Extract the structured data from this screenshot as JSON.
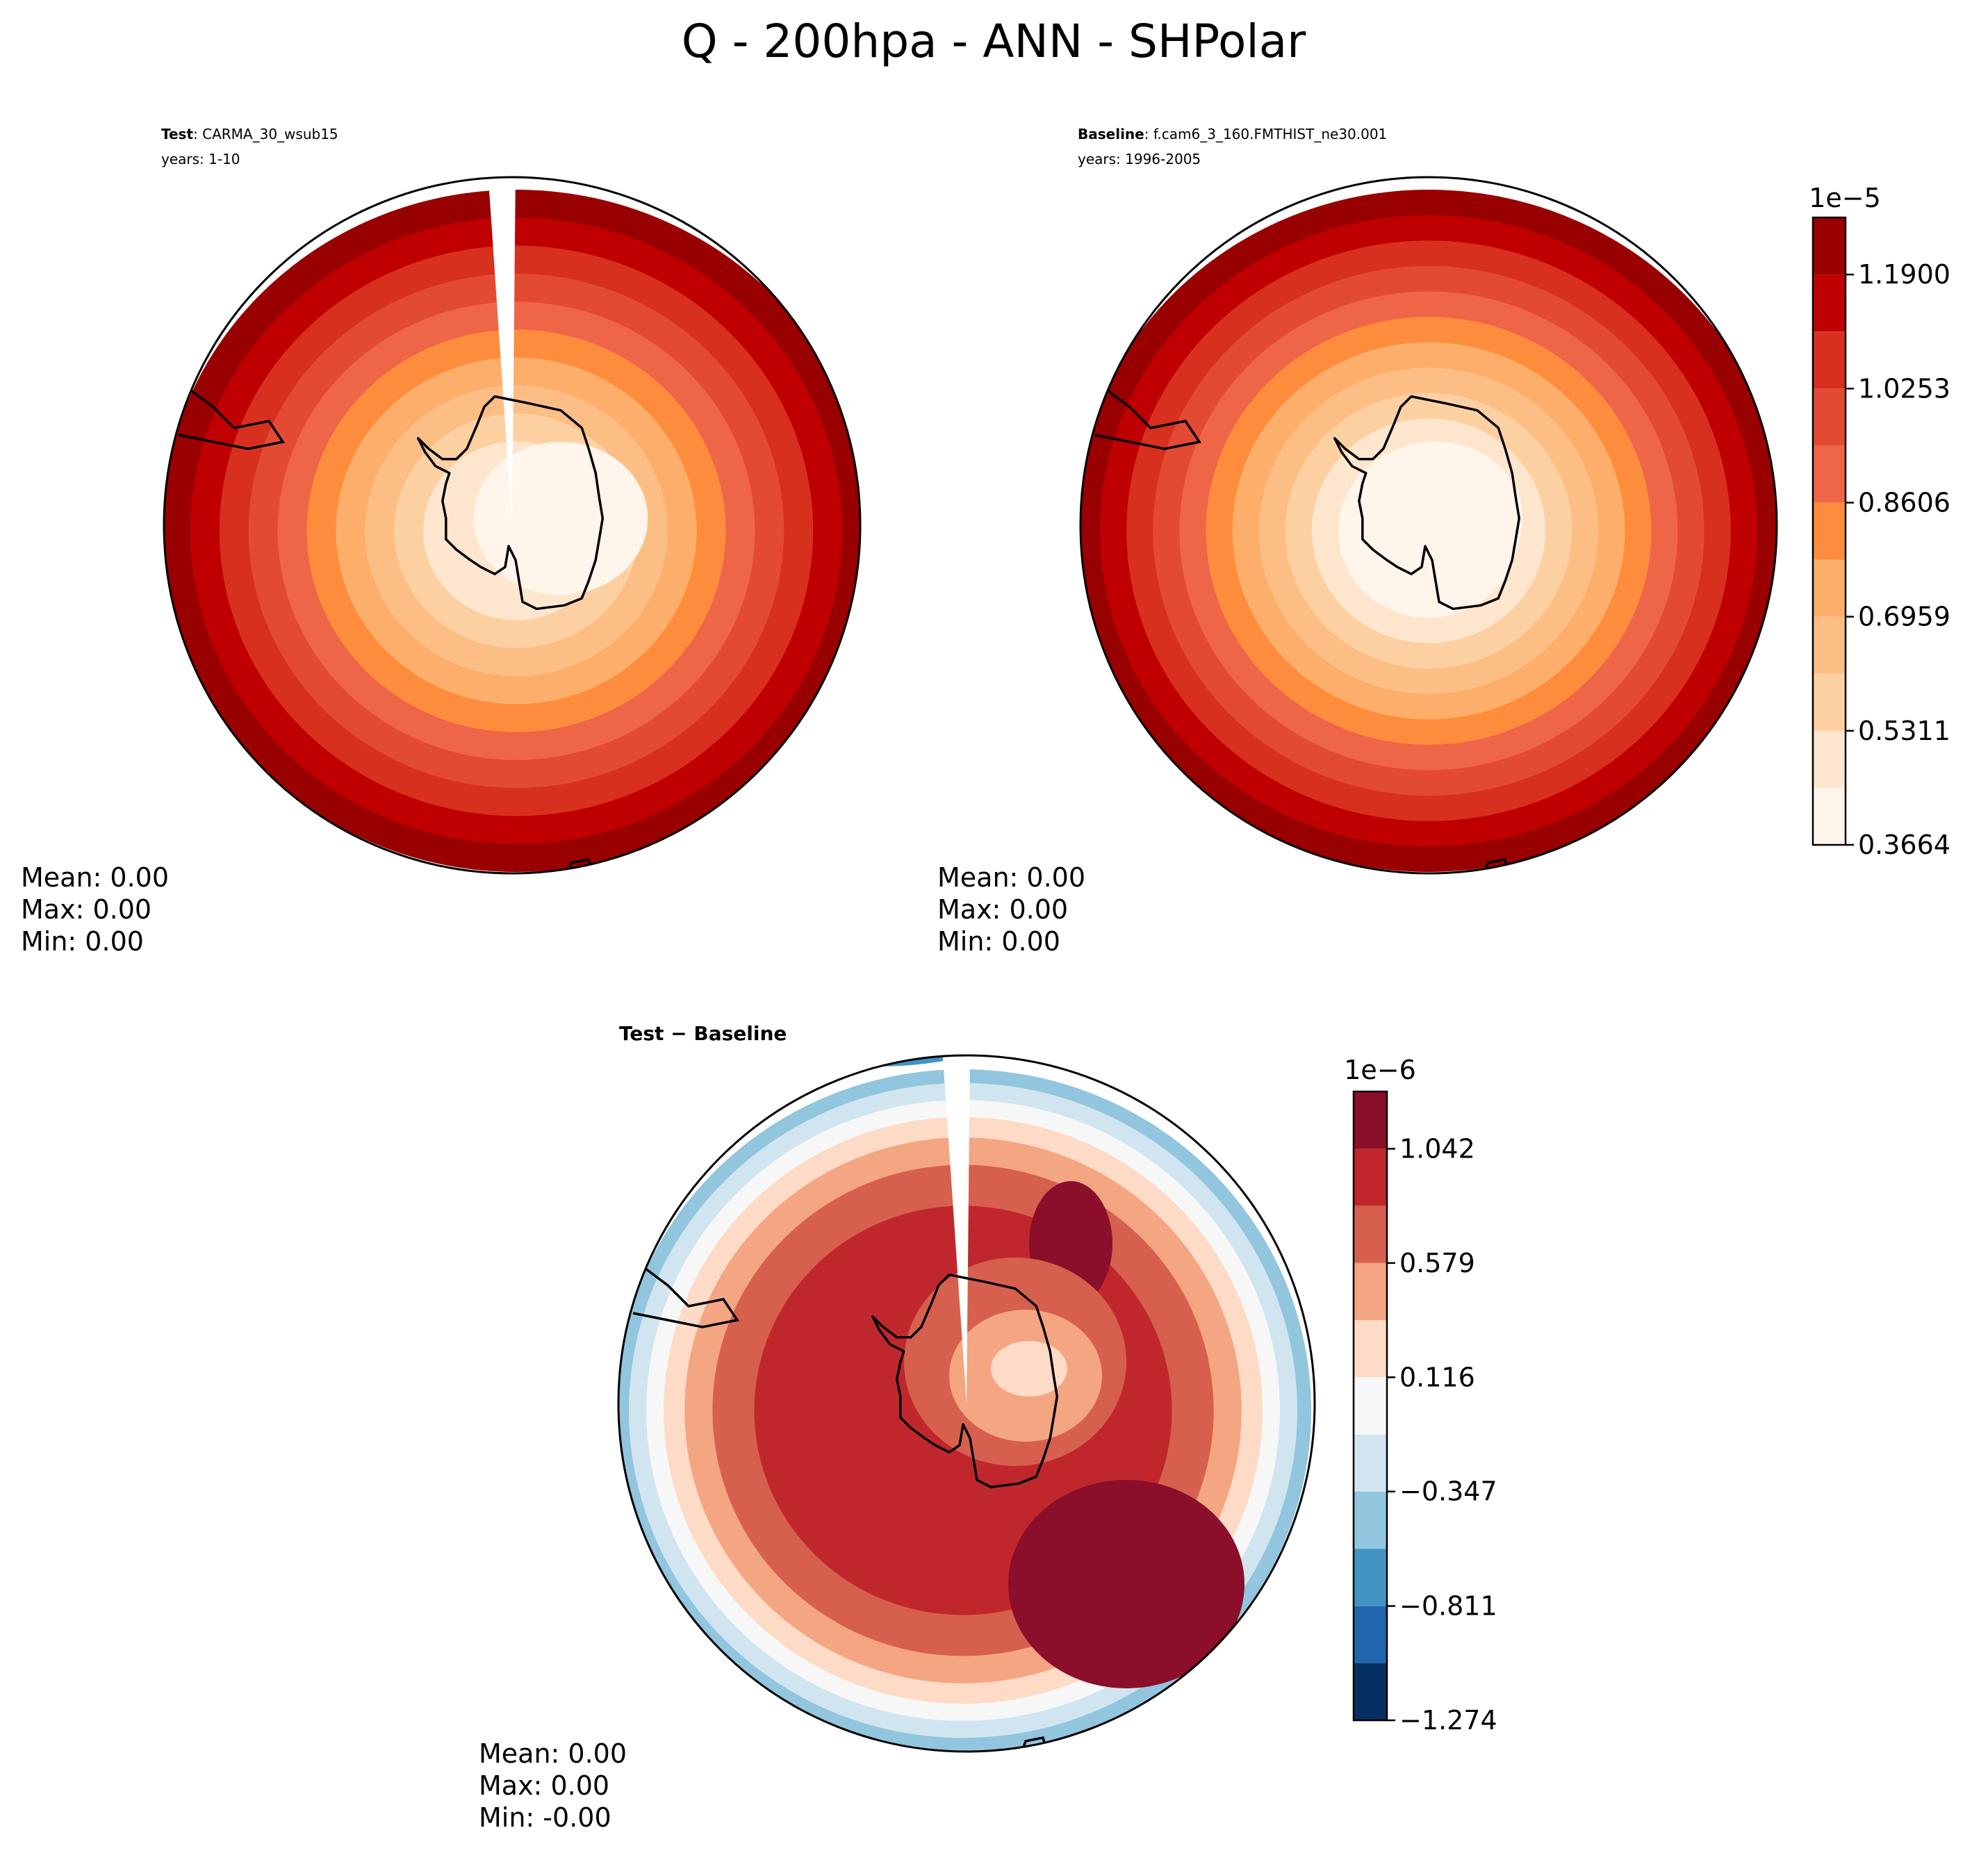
{
  "figure_title": "Q - 200hpa - ANN - SHPolar",
  "chart_data": [
    {
      "type": "contour",
      "panel": "test",
      "label_bold": "Test",
      "label_rest": ": CARMA_30_wsub15",
      "years": "years: 1-10",
      "stats": {
        "mean": "Mean:  0.00",
        "max": "Max:  0.00",
        "min": "Min:  0.00"
      },
      "levels": [
        0.3664,
        0.4488,
        0.5311,
        0.6135,
        0.6959,
        0.7782,
        0.8606,
        0.9429,
        1.0253,
        1.1076,
        1.19,
        1.2724
      ],
      "colors": [
        "#fff5eb",
        "#fee6ce",
        "#fdd0a2",
        "#fdbe85",
        "#fdae6b",
        "#fd8d3c",
        "#ef6548",
        "#e34a33",
        "#d7301f",
        "#c00000",
        "#990000"
      ],
      "missing_sector": true
    },
    {
      "type": "contour",
      "panel": "baseline",
      "label_bold": "Baseline",
      "label_rest": ": f.cam6_3_160.FMTHIST_ne30.001",
      "years": "years: 1996-2005",
      "stats": {
        "mean": "Mean:  0.00",
        "max": "Max:  0.00",
        "min": "Min:  0.00"
      },
      "missing_sector": false
    },
    {
      "type": "contour",
      "panel": "diff",
      "label_bold": "Test",
      "label_mid": " − ",
      "label_rest": "Baseline",
      "stats": {
        "mean": "Mean:  0.00",
        "max": "Max:  0.00",
        "min": "Min: -0.00"
      },
      "levels": [
        -1.274,
        -1.042,
        -0.811,
        -0.579,
        -0.347,
        -0.116,
        0.116,
        0.347,
        0.579,
        0.811,
        1.042,
        1.274
      ],
      "colors": [
        "#053061",
        "#2166ac",
        "#4393c3",
        "#92c5de",
        "#d1e5f0",
        "#f7f7f7",
        "#fddbc7",
        "#f4a582",
        "#d6604d",
        "#c0272d",
        "#8b0e2b"
      ],
      "missing_sector": true
    }
  ],
  "colorbars": [
    {
      "name": "main",
      "exponent": "1e−5",
      "tick_labels": [
        "0.3664",
        "0.5311",
        "0.6959",
        "0.8606",
        "1.0253",
        "1.1900"
      ],
      "tick_values": [
        0.3664,
        0.5311,
        0.6959,
        0.8606,
        1.0253,
        1.19
      ],
      "range": [
        0.3664,
        1.2724
      ]
    },
    {
      "name": "diff",
      "exponent": "1e−6",
      "tick_labels": [
        "−1.274",
        "−0.811",
        "−0.347",
        "0.116",
        "0.579",
        "1.042"
      ],
      "tick_values": [
        -1.274,
        -0.811,
        -0.347,
        0.116,
        0.579,
        1.042
      ],
      "range": [
        -1.274,
        1.274
      ]
    }
  ],
  "colors": {
    "frame": "#000000",
    "background": "#ffffff"
  }
}
